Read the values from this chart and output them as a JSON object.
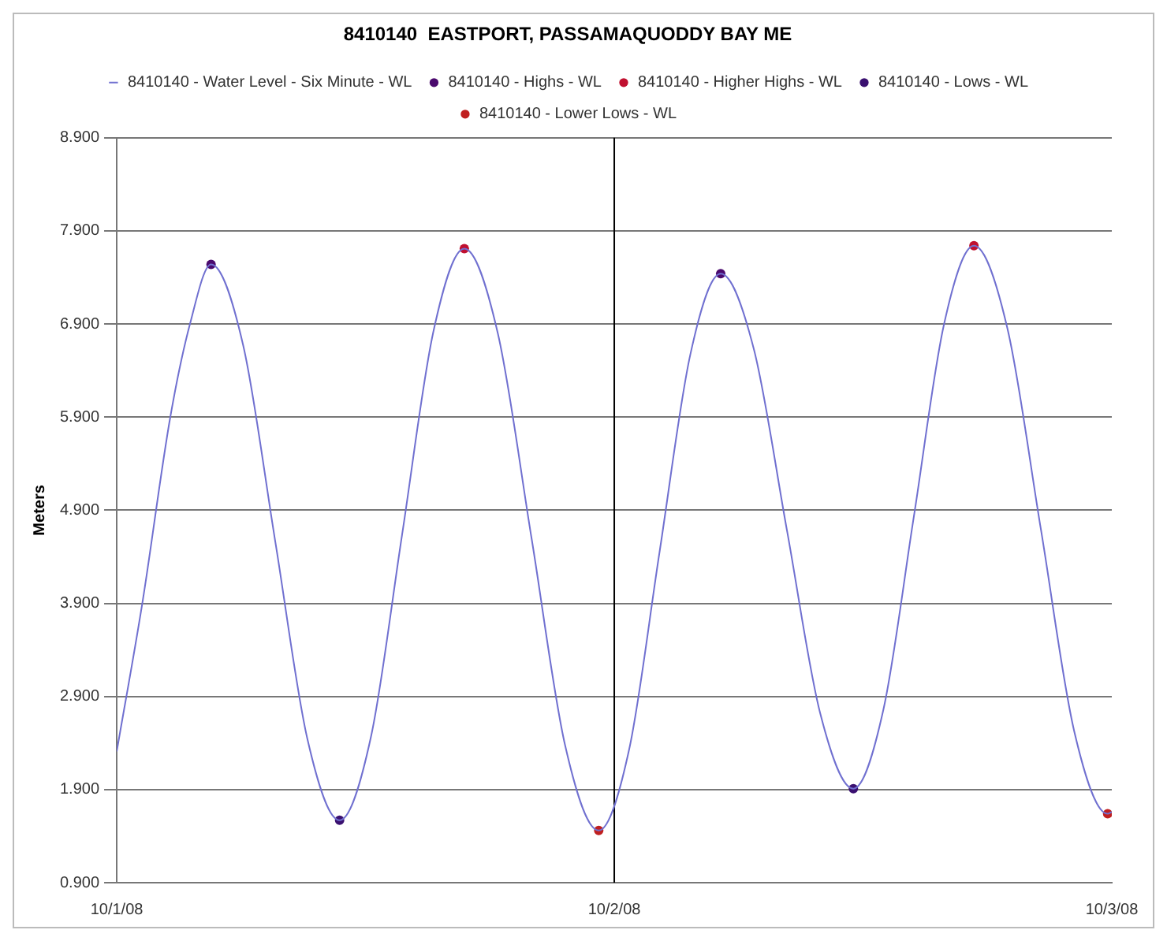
{
  "chart_data": {
    "type": "line",
    "title": "8410140  EASTPORT, PASSAMAQUODDY BAY ME",
    "ylabel": "Meters",
    "xlim": [
      "--10-01",
      "--10-03"
    ],
    "xticks": [
      {
        "value": "--10-01",
        "label": "10/1/08"
      },
      {
        "value": "--10-02",
        "label": "10/2/08"
      },
      {
        "value": "--10-03",
        "label": "10/3/08"
      }
    ],
    "ylim": [
      0.9,
      8.9
    ],
    "yticks": [
      {
        "value": 0.9,
        "label": "0.900"
      },
      {
        "value": 1.9,
        "label": "1.900"
      },
      {
        "value": 2.9,
        "label": "2.900"
      },
      {
        "value": 3.9,
        "label": "3.900"
      },
      {
        "value": 4.9,
        "label": "4.900"
      },
      {
        "value": 5.9,
        "label": "5.900"
      },
      {
        "value": 6.9,
        "label": "6.900"
      },
      {
        "value": 7.9,
        "label": "7.900"
      },
      {
        "value": 8.9,
        "label": "8.900"
      }
    ],
    "grid": "y",
    "legend": "top",
    "ref_lines": [
      {
        "axis": "x",
        "value": "--10-02",
        "color": "#000000"
      }
    ],
    "series": [
      {
        "name": "8410140 - Water Level - Six Minute - WL",
        "type": "line",
        "marker": "none",
        "color": "#7070d0",
        "x": [
          "--10-01T00:00",
          "--10-01T01:14",
          "--10-01T02:35",
          "--10-01T03:32",
          "--10-01T04:33",
          "--10-01T06:06",
          "--10-01T07:39",
          "--10-01T09:12",
          "--10-01T10:45",
          "--10-01T12:16",
          "--10-01T13:46",
          "--10-01T15:16",
          "--10-01T16:46",
          "--10-01T18:23",
          "--10-01T20:01",
          "--10-01T21:38",
          "--10-01T23:15",
          "--10-02T00:43",
          "--10-02T02:11",
          "--10-02T03:40",
          "--10-02T05:08",
          "--10-02T06:44",
          "--10-02T08:20",
          "--10-02T09:56",
          "--10-02T11:32",
          "--10-02T12:59",
          "--10-02T14:27",
          "--10-02T15:54",
          "--10-02T17:21",
          "--10-02T18:58",
          "--10-02T20:35",
          "--10-02T22:11",
          "--10-02T23:48",
          "--10-03T00:00"
        ],
        "values": [
          2.31,
          3.9,
          5.9,
          6.9,
          7.54,
          6.67,
          4.56,
          2.44,
          1.57,
          2.47,
          4.64,
          6.81,
          7.71,
          6.8,
          4.59,
          2.37,
          1.46,
          2.33,
          4.45,
          6.57,
          7.44,
          6.63,
          4.68,
          2.72,
          1.91,
          2.76,
          4.83,
          6.89,
          7.74,
          6.85,
          4.69,
          2.53,
          1.64,
          1.66
        ]
      },
      {
        "name": "8410140 - Highs - WL",
        "type": "scatter",
        "marker": "circle",
        "color": "#4b0a6e",
        "x": [
          "--10-01T04:33",
          "--10-02T05:08"
        ],
        "values": [
          7.54,
          7.44
        ]
      },
      {
        "name": "8410140 - Higher Highs - WL",
        "type": "scatter",
        "marker": "circle",
        "color": "#c01030",
        "x": [
          "--10-01T16:46",
          "--10-02T17:21"
        ],
        "values": [
          7.71,
          7.74
        ]
      },
      {
        "name": "8410140 - Lows - WL",
        "type": "scatter",
        "marker": "circle",
        "color": "#3a1070",
        "x": [
          "--10-01T10:45",
          "--10-02T11:32"
        ],
        "values": [
          1.57,
          1.91
        ]
      },
      {
        "name": "8410140 - Lower Lows - WL",
        "type": "scatter",
        "marker": "circle",
        "color": "#c02020",
        "x": [
          "--10-01T23:15",
          "--10-02T23:48"
        ],
        "values": [
          1.46,
          1.64
        ]
      }
    ]
  }
}
